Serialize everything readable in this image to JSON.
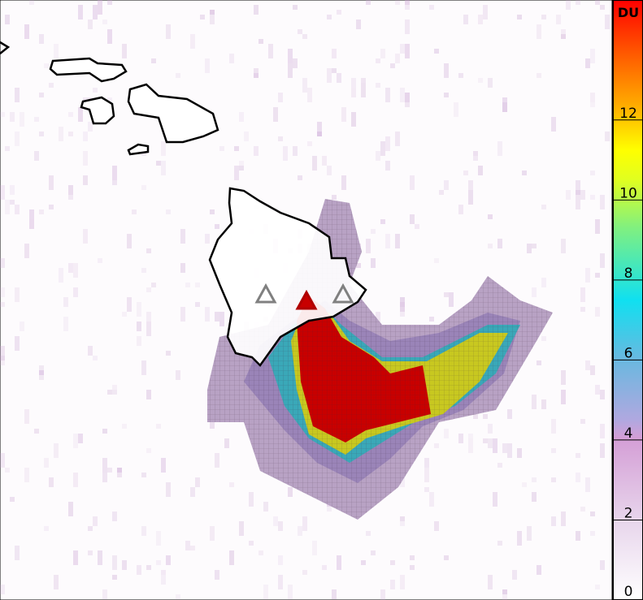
{
  "colorbar": {
    "unit": "DU",
    "ticks": [
      "0",
      "2",
      "4",
      "6",
      "8",
      "10",
      "12"
    ],
    "range": [
      0,
      15
    ],
    "stops": [
      "#ffffff",
      "#e8d6ec",
      "#d49ed6",
      "#a8a8e0",
      "#6ab8e0",
      "#10e0f0",
      "#60e890",
      "#d8ff20",
      "#ffff00",
      "#ffb000",
      "#ff6000",
      "#ff0000"
    ]
  },
  "map": {
    "land_color": "#ffffff",
    "coast_color": "#000000",
    "volcano_marker_colors": [
      "#808080",
      "#b00000",
      "#808080"
    ],
    "plume_colors": {
      "low": "#b8a2c4",
      "mid": "#9a84b8",
      "teal": "#3aa8b8",
      "yellow": "#c8c820",
      "high": "#c80000"
    }
  }
}
